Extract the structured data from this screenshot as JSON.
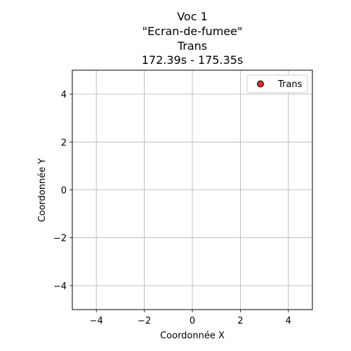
{
  "chart_data": {
    "type": "scatter",
    "title_lines": [
      "Voc 1",
      "\"Ecran-de-fumee\"",
      "Trans",
      "172.39s - 175.35s"
    ],
    "xlabel": "Coordonnée X",
    "ylabel": "Coordonnée Y",
    "xlim": [
      -5,
      5
    ],
    "ylim": [
      -5,
      5
    ],
    "xticks": [
      -4,
      -2,
      0,
      2,
      4
    ],
    "yticks": [
      -4,
      -2,
      0,
      2,
      4
    ],
    "xtick_labels": [
      "−4",
      "−2",
      "0",
      "2",
      "4"
    ],
    "ytick_labels": [
      "−4",
      "−2",
      "0",
      "2",
      "4"
    ],
    "grid": true,
    "legend_position": "top-right",
    "series": [
      {
        "name": "Trans",
        "color": "#e8292b",
        "edge_color": "#000000",
        "points": []
      }
    ]
  }
}
